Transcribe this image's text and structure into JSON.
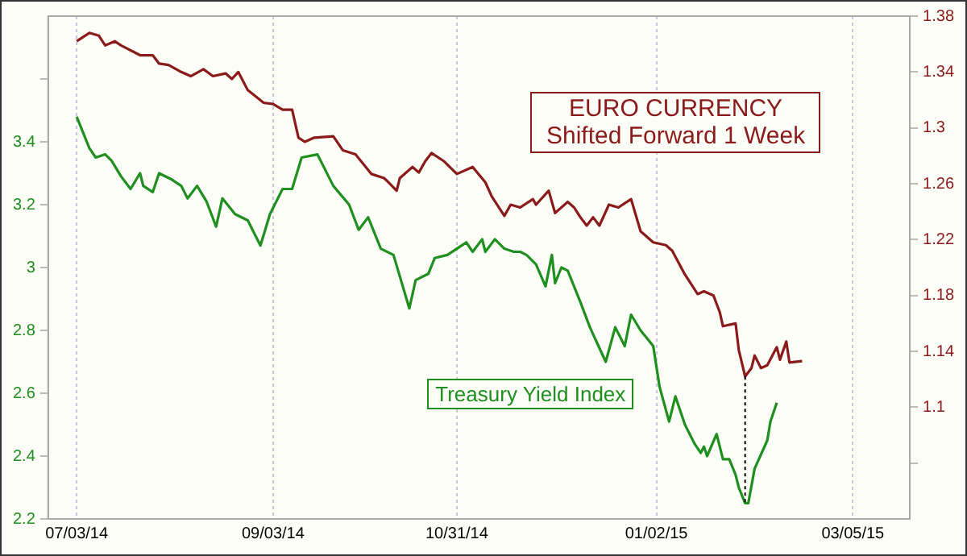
{
  "chart_data": {
    "type": "line",
    "xlim": [
      "2014-06-24",
      "2015-03-23"
    ],
    "xticks": [
      {
        "value": "2014-07-03",
        "label": "07/03/14"
      },
      {
        "value": "2014-09-03",
        "label": "09/03/14"
      },
      {
        "value": "2014-10-31",
        "label": "10/31/14"
      },
      {
        "value": "2015-01-02",
        "label": "01/02/15"
      },
      {
        "value": "2015-03-05",
        "label": "03/05/15"
      }
    ],
    "ylim": [
      2.2,
      3.8
    ],
    "yticks": [
      2.2,
      2.4,
      2.6,
      2.8,
      3,
      3.2,
      3.4,
      {
        "value": 3.6,
        "label": null
      }
    ],
    "y2lim": [
      1.02,
      1.38
    ],
    "y2ticks": [
      {
        "value": 1.06,
        "label": null
      },
      1.1,
      1.14,
      1.18,
      1.22,
      1.26,
      1.3,
      1.34,
      1.38
    ],
    "grid": "x",
    "legend": false,
    "marker": "none",
    "line_style": "solid",
    "ref_lines": [
      {
        "axis": "x",
        "value": "2015-01-30",
        "color": "#000000",
        "line_style": "dotted"
      }
    ],
    "series": [
      {
        "name": "EURO CURRENCY Shifted Forward 1 Week",
        "color": "#8b1a1a",
        "axis": "y2",
        "x": [
          "2014-07-03",
          "2014-07-07",
          "2014-07-10",
          "2014-07-12",
          "2014-07-15",
          "2014-07-17",
          "2014-07-23",
          "2014-07-27",
          "2014-07-29",
          "2014-08-01",
          "2014-08-05",
          "2014-08-08",
          "2014-08-12",
          "2014-08-15",
          "2014-08-19",
          "2014-08-21",
          "2014-08-23",
          "2014-08-26",
          "2014-08-31",
          "2014-09-03",
          "2014-09-06",
          "2014-09-09",
          "2014-09-11",
          "2014-09-13",
          "2014-09-16",
          "2014-09-22",
          "2014-09-25",
          "2014-09-29",
          "2014-10-04",
          "2014-10-08",
          "2014-10-09",
          "2014-10-12",
          "2014-10-13",
          "2014-10-17",
          "2014-10-19",
          "2014-10-21",
          "2014-10-23",
          "2014-10-27",
          "2014-10-31",
          "2014-11-05",
          "2014-11-09",
          "2014-11-11",
          "2014-11-15",
          "2014-11-17",
          "2014-11-20",
          "2014-11-24",
          "2014-11-25",
          "2014-11-29",
          "2014-12-01",
          "2014-12-05",
          "2014-12-07",
          "2014-12-09",
          "2014-12-11",
          "2014-12-13",
          "2014-12-15",
          "2014-12-18",
          "2014-12-21",
          "2014-12-25",
          "2014-12-28",
          "2015-01-01",
          "2015-01-05",
          "2015-01-07",
          "2015-01-11",
          "2015-01-15",
          "2015-01-17",
          "2015-01-20",
          "2015-01-22",
          "2015-01-23",
          "2015-01-27",
          "2015-01-28",
          "2015-01-30",
          "2015-02-01",
          "2015-02-02",
          "2015-02-04",
          "2015-02-06",
          "2015-02-09",
          "2015-02-10",
          "2015-02-12",
          "2015-02-13",
          "2015-02-17"
        ],
        "values": [
          1.362,
          1.368,
          1.366,
          1.359,
          1.362,
          1.359,
          1.352,
          1.352,
          1.346,
          1.345,
          1.34,
          1.337,
          1.342,
          1.337,
          1.339,
          1.335,
          1.34,
          1.327,
          1.318,
          1.317,
          1.313,
          1.313,
          1.293,
          1.29,
          1.293,
          1.294,
          1.284,
          1.281,
          1.267,
          1.264,
          1.262,
          1.255,
          1.264,
          1.272,
          1.268,
          1.276,
          1.282,
          1.276,
          1.267,
          1.272,
          1.261,
          1.251,
          1.237,
          1.245,
          1.243,
          1.249,
          1.245,
          1.255,
          1.239,
          1.247,
          1.243,
          1.236,
          1.23,
          1.236,
          1.23,
          1.245,
          1.243,
          1.249,
          1.226,
          1.218,
          1.216,
          1.212,
          1.195,
          1.181,
          1.183,
          1.18,
          1.168,
          1.158,
          1.16,
          1.141,
          1.122,
          1.128,
          1.137,
          1.128,
          1.13,
          1.143,
          1.134,
          1.147,
          1.132,
          1.133
        ]
      },
      {
        "name": "Treasury Yield Index",
        "color": "#1f8f1f",
        "axis": "y",
        "x": [
          "2014-07-03",
          "2014-07-07",
          "2014-07-09",
          "2014-07-12",
          "2014-07-14",
          "2014-07-17",
          "2014-07-20",
          "2014-07-23",
          "2014-07-24",
          "2014-07-27",
          "2014-07-29",
          "2014-08-02",
          "2014-08-05",
          "2014-08-07",
          "2014-08-10",
          "2014-08-13",
          "2014-08-16",
          "2014-08-18",
          "2014-08-22",
          "2014-08-26",
          "2014-08-30",
          "2014-09-02",
          "2014-09-06",
          "2014-09-09",
          "2014-09-12",
          "2014-09-17",
          "2014-09-22",
          "2014-09-27",
          "2014-09-30",
          "2014-10-03",
          "2014-10-07",
          "2014-10-11",
          "2014-10-16",
          "2014-10-18",
          "2014-10-22",
          "2014-10-24",
          "2014-10-28",
          "2014-11-03",
          "2014-11-05",
          "2014-11-08",
          "2014-11-09",
          "2014-11-12",
          "2014-11-15",
          "2014-11-18",
          "2014-11-20",
          "2014-11-22",
          "2014-11-25",
          "2014-11-28",
          "2014-11-30",
          "2014-12-01",
          "2014-12-03",
          "2014-12-05",
          "2014-12-09",
          "2014-12-12",
          "2014-12-17",
          "2014-12-20",
          "2014-12-23",
          "2014-12-25",
          "2014-12-28",
          "2015-01-01",
          "2015-01-03",
          "2015-01-06",
          "2015-01-08",
          "2015-01-11",
          "2015-01-14",
          "2015-01-16",
          "2015-01-17",
          "2015-01-18",
          "2015-01-21",
          "2015-01-23",
          "2015-01-25",
          "2015-01-27",
          "2015-01-28",
          "2015-01-30",
          "2015-01-31",
          "2015-02-02",
          "2015-02-06",
          "2015-02-07",
          "2015-02-09"
        ],
        "values": [
          3.48,
          3.38,
          3.35,
          3.36,
          3.34,
          3.29,
          3.25,
          3.3,
          3.26,
          3.24,
          3.3,
          3.28,
          3.26,
          3.22,
          3.26,
          3.21,
          3.13,
          3.22,
          3.17,
          3.15,
          3.07,
          3.17,
          3.25,
          3.25,
          3.35,
          3.36,
          3.26,
          3.2,
          3.12,
          3.16,
          3.06,
          3.04,
          2.87,
          2.96,
          2.98,
          3.03,
          3.04,
          3.08,
          3.05,
          3.09,
          3.05,
          3.09,
          3.06,
          3.05,
          3.05,
          3.04,
          3.01,
          2.94,
          3.04,
          2.95,
          3,
          2.99,
          2.89,
          2.81,
          2.7,
          2.81,
          2.75,
          2.85,
          2.8,
          2.75,
          2.62,
          2.51,
          2.59,
          2.5,
          2.44,
          2.41,
          2.43,
          2.4,
          2.47,
          2.39,
          2.39,
          2.34,
          2.3,
          2.25,
          2.25,
          2.36,
          2.45,
          2.51,
          2.57
        ]
      }
    ]
  }
}
